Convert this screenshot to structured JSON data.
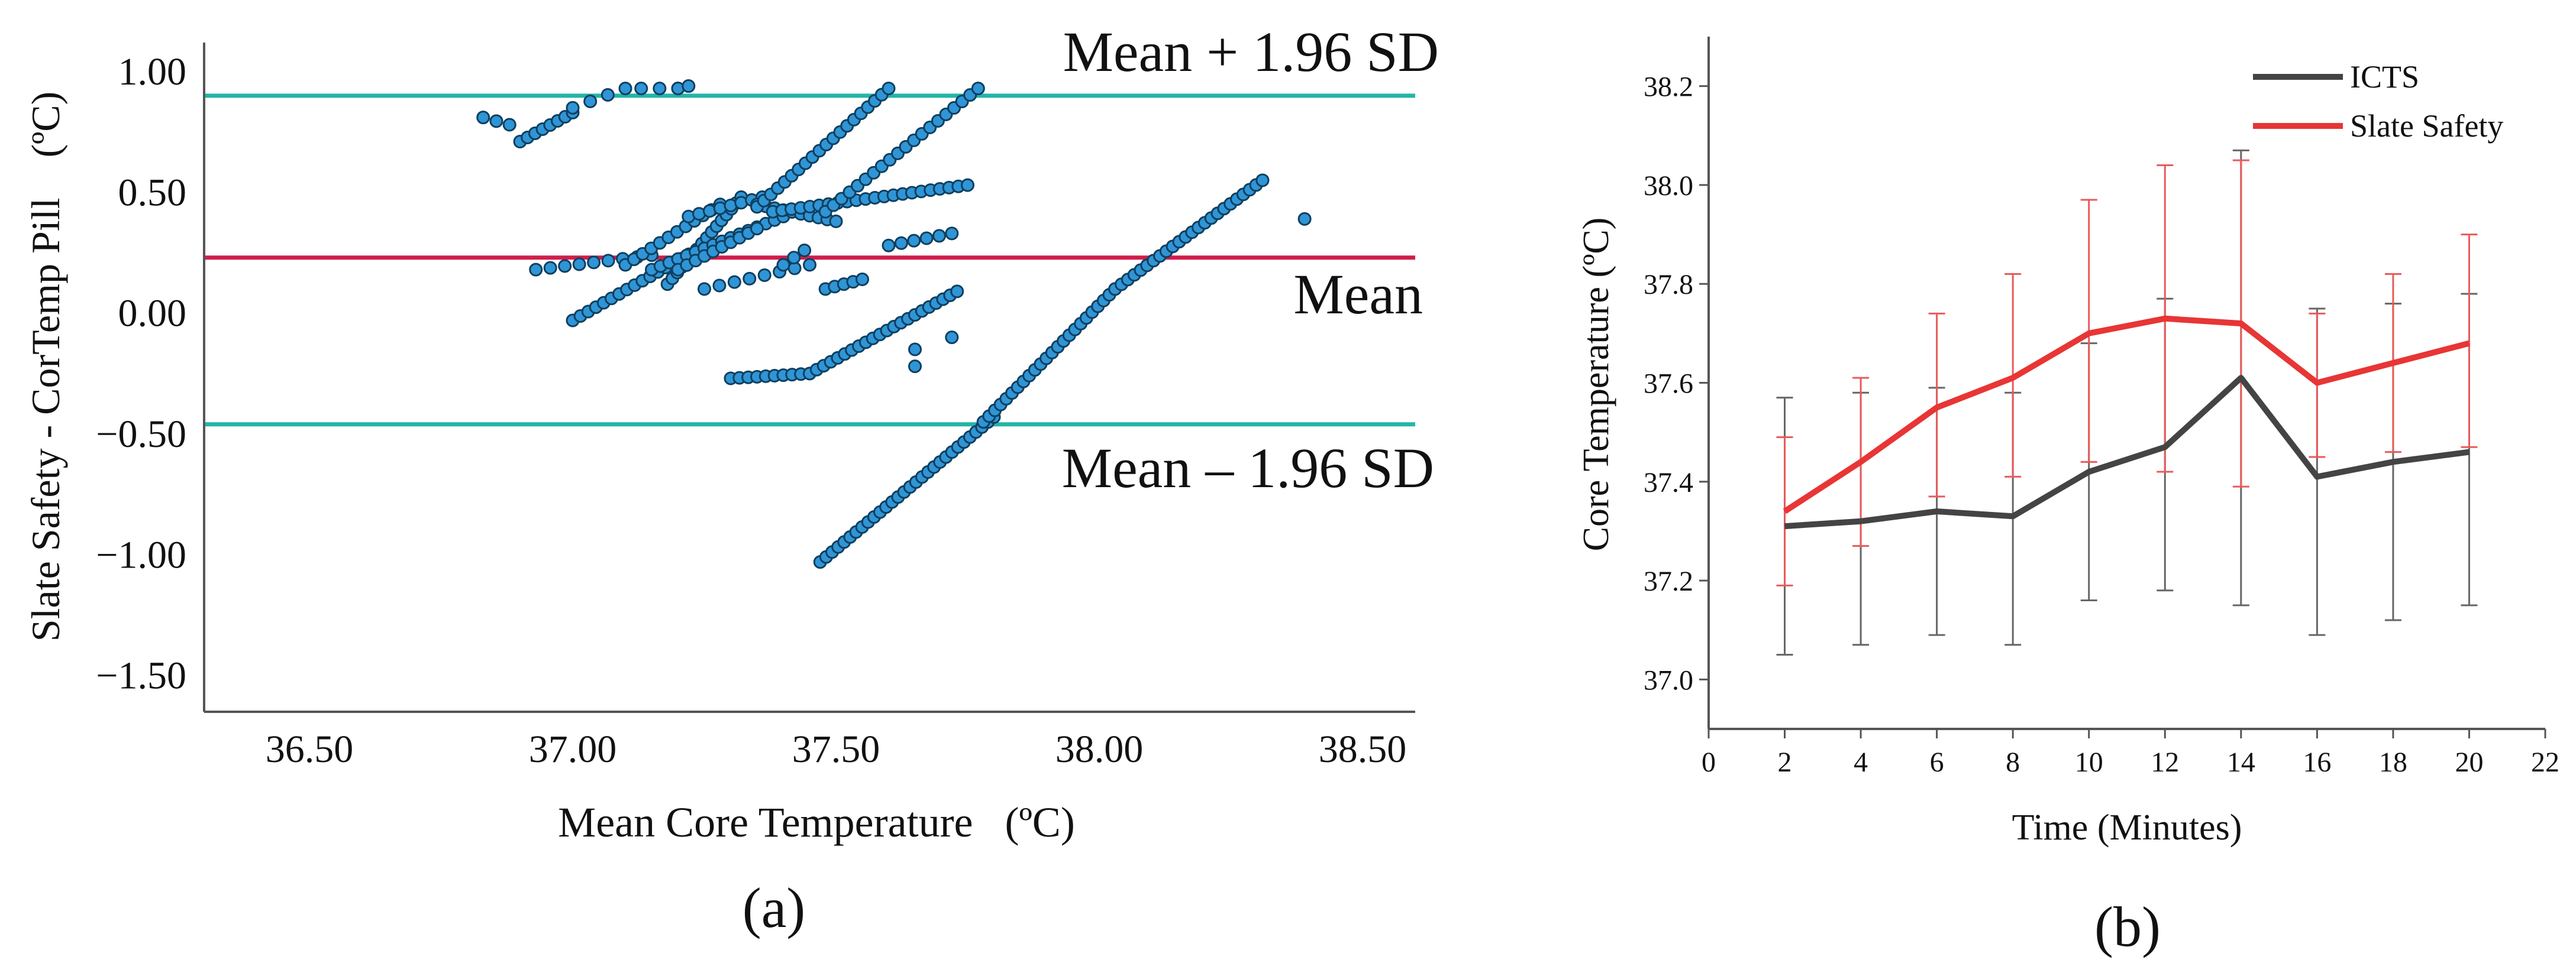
{
  "colors": {
    "axis": "#555555",
    "bound_line": "#22b5a8",
    "mean_line": "#d11d4a",
    "point_fill": "#2f95d6",
    "point_stroke": "#0f3f5e",
    "icts": "#444444",
    "slate": "#e83535",
    "icts_err": "#666666",
    "slate_err": "#ea5a5a"
  },
  "panels": {
    "a_caption": "(a)",
    "b_caption": "(b)"
  },
  "chart_data": [
    {
      "id": "a",
      "type": "scatter",
      "title": "",
      "xlabel": "Mean Core Temperature   (ºC)",
      "ylabel": "Slate Safety - CorTemp Pill    (ºC)",
      "xlim": [
        36.3,
        38.6
      ],
      "ylim": [
        -1.65,
        1.12
      ],
      "xticks": [
        36.5,
        37.0,
        37.5,
        38.0,
        38.5
      ],
      "xtick_labels": [
        "36.50",
        "37.00",
        "37.50",
        "38.00",
        "38.50"
      ],
      "yticks": [
        1.0,
        0.5,
        0.0,
        -0.5,
        -1.0,
        -1.5
      ],
      "ytick_labels": [
        "1.00",
        "0.50",
        "0.00",
        "-0.50",
        "-1.00",
        "-1.50"
      ],
      "reference_lines": [
        {
          "name": "upper-loa",
          "label": "Mean + 1.96 SD",
          "y": 0.9
        },
        {
          "name": "mean",
          "label": "Mean",
          "y": 0.23
        },
        {
          "name": "lower-loa",
          "label": "Mean – 1.96 SD",
          "y": -0.46
        }
      ],
      "segments": [
        {
          "x0": 36.83,
          "x1": 36.88,
          "y0": 0.81,
          "y1": 0.78,
          "n": 3
        },
        {
          "x0": 36.9,
          "x1": 37.0,
          "y0": 0.71,
          "y1": 0.83,
          "n": 8
        },
        {
          "x0": 37.0,
          "x1": 37.1,
          "y0": 0.85,
          "y1": 0.93,
          "n": 4
        },
        {
          "x0": 37.13,
          "x1": 37.2,
          "y0": 0.93,
          "y1": 0.93,
          "n": 3
        },
        {
          "x0": 37.2,
          "x1": 37.22,
          "y0": 0.93,
          "y1": 0.94,
          "n": 2
        },
        {
          "x0": 36.93,
          "x1": 37.15,
          "y0": 0.18,
          "y1": 0.24,
          "n": 9
        },
        {
          "x0": 37.0,
          "x1": 37.25,
          "y0": -0.03,
          "y1": 0.28,
          "n": 18
        },
        {
          "x0": 37.1,
          "x1": 37.28,
          "y0": 0.2,
          "y1": 0.45,
          "n": 12
        },
        {
          "x0": 37.18,
          "x1": 37.32,
          "y0": 0.12,
          "y1": 0.48,
          "n": 16
        },
        {
          "x0": 37.15,
          "x1": 37.4,
          "y0": 0.18,
          "y1": 0.4,
          "n": 16
        },
        {
          "x0": 37.2,
          "x1": 37.35,
          "y0": 0.18,
          "y1": 0.35,
          "n": 10
        },
        {
          "x0": 37.22,
          "x1": 37.36,
          "y0": 0.4,
          "y1": 0.48,
          "n": 8
        },
        {
          "x0": 37.35,
          "x1": 37.5,
          "y0": 0.45,
          "y1": 0.38,
          "n": 10
        },
        {
          "x0": 37.35,
          "x1": 37.6,
          "y0": 0.44,
          "y1": 0.93,
          "n": 20
        },
        {
          "x0": 37.38,
          "x1": 37.75,
          "y0": 0.42,
          "y1": 0.53,
          "n": 22
        },
        {
          "x0": 37.48,
          "x1": 37.77,
          "y0": 0.42,
          "y1": 0.93,
          "n": 20
        },
        {
          "x0": 37.3,
          "x1": 37.45,
          "y0": -0.27,
          "y1": -0.25,
          "n": 10
        },
        {
          "x0": 37.45,
          "x1": 37.73,
          "y0": -0.25,
          "y1": 0.09,
          "n": 22
        },
        {
          "x0": 37.25,
          "x1": 37.45,
          "y0": 0.1,
          "y1": 0.2,
          "n": 8
        },
        {
          "x0": 37.48,
          "x1": 37.55,
          "y0": 0.1,
          "y1": 0.14,
          "n": 5
        },
        {
          "x0": 37.6,
          "x1": 37.72,
          "y0": 0.28,
          "y1": 0.33,
          "n": 6
        },
        {
          "x0": 37.47,
          "x1": 37.8,
          "y0": -1.03,
          "y1": -0.43,
          "n": 30
        },
        {
          "x0": 37.78,
          "x1": 38.03,
          "y0": -0.45,
          "y1": 0.1,
          "n": 24
        },
        {
          "x0": 38.03,
          "x1": 38.31,
          "y0": 0.1,
          "y1": 0.55,
          "n": 24
        },
        {
          "x0": 37.4,
          "x1": 37.44,
          "y0": 0.2,
          "y1": 0.26,
          "n": 3
        }
      ],
      "points": [
        {
          "x": 38.39,
          "y": 0.39
        },
        {
          "x": 37.65,
          "y": -0.15
        },
        {
          "x": 37.65,
          "y": -0.22
        },
        {
          "x": 37.72,
          "y": -0.1
        }
      ]
    },
    {
      "id": "b",
      "type": "line",
      "title": "",
      "xlabel": "Time (Minutes)",
      "ylabel": "Core Temperature (ºC)",
      "xlim": [
        0,
        22
      ],
      "ylim": [
        36.9,
        38.3
      ],
      "xticks": [
        0,
        2,
        4,
        6,
        8,
        10,
        12,
        14,
        16,
        18,
        20,
        22
      ],
      "xtick_labels": [
        "0",
        "2",
        "4",
        "6",
        "8",
        "10",
        "12",
        "14",
        "16",
        "18",
        "20",
        "22"
      ],
      "yticks": [
        37.0,
        37.2,
        37.4,
        37.6,
        37.8,
        38.0,
        38.2
      ],
      "ytick_labels": [
        "37.0",
        "37.2",
        "37.4",
        "37.6",
        "37.8",
        "38.0",
        "38.2"
      ],
      "legend_position": "top-right",
      "x": [
        2,
        4,
        6,
        8,
        10,
        12,
        14,
        16,
        18,
        20
      ],
      "series": [
        {
          "name": "ICTS",
          "values": [
            37.31,
            37.32,
            37.34,
            37.33,
            37.42,
            37.47,
            37.61,
            37.41,
            37.44,
            37.46
          ],
          "err_low": [
            37.05,
            37.07,
            37.09,
            37.07,
            37.16,
            37.18,
            37.15,
            37.09,
            37.12,
            37.15
          ],
          "err_high": [
            37.57,
            37.58,
            37.59,
            37.58,
            37.68,
            37.77,
            38.07,
            37.75,
            37.76,
            37.78
          ]
        },
        {
          "name": "Slate Safety",
          "values": [
            37.34,
            37.44,
            37.55,
            37.61,
            37.7,
            37.73,
            37.72,
            37.6,
            37.64,
            37.68
          ],
          "err_low": [
            37.19,
            37.27,
            37.37,
            37.41,
            37.44,
            37.42,
            37.39,
            37.45,
            37.46,
            37.47
          ],
          "err_high": [
            37.49,
            37.61,
            37.74,
            37.82,
            37.97,
            38.04,
            38.05,
            37.74,
            37.82,
            37.9
          ]
        }
      ]
    }
  ]
}
